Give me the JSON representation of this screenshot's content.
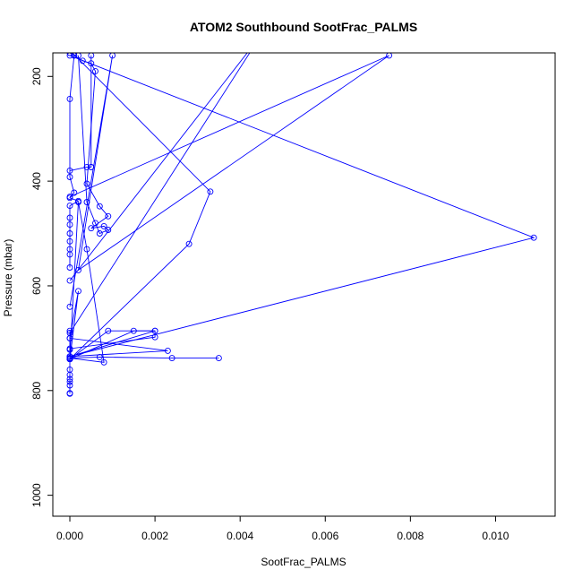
{
  "chart_data": {
    "type": "line",
    "title": "ATOM2 Southbound SootFrac_PALMS",
    "xlabel": "SootFrac_PALMS",
    "ylabel": "Pressure (mbar)",
    "xlim": [
      -0.0004,
      0.0114
    ],
    "ylim": [
      1040,
      155
    ],
    "y_reversed": true,
    "x_ticks": [
      "0.000",
      "0.002",
      "0.004",
      "0.006",
      "0.008",
      "0.010"
    ],
    "x_tick_values": [
      0.0,
      0.002,
      0.004,
      0.006,
      0.008,
      0.01
    ],
    "y_ticks": [
      "200",
      "400",
      "600",
      "800",
      "1000"
    ],
    "y_tick_values": [
      200,
      400,
      600,
      800,
      1000
    ],
    "series_color": "#0000ff",
    "series": [
      {
        "x": [
          0.0,
          0.0001,
          0.0,
          0.0,
          0.0001,
          0.0,
          0.0002,
          0.0,
          0.0,
          0.0,
          0.0,
          0.0,
          0.0,
          0.0,
          0.0
        ],
        "y": [
          155,
          160,
          243,
          392,
          422,
          432,
          438,
          447,
          470,
          483,
          500,
          515,
          530,
          540,
          565
        ]
      },
      {
        "x": [
          0.0001,
          0.0003,
          0.0005,
          0.0006,
          0.0004,
          0.0007,
          0.0009,
          0.0005,
          0.0008,
          0.0009,
          0.0007,
          0.0006,
          0.0004,
          0.0002
        ],
        "y": [
          160,
          170,
          175,
          190,
          405,
          448,
          467,
          490,
          486,
          493,
          500,
          480,
          440,
          160
        ]
      },
      {
        "x": [
          0.0005,
          0.0005,
          0.0005,
          0.0004,
          0.0
        ],
        "y": [
          160,
          373,
          373,
          373,
          380
        ]
      },
      {
        "x": [
          0.0,
          0.0033,
          0.0028,
          0.0,
          0.0015,
          0.002,
          0.002,
          0.0,
          0.0
        ],
        "y": [
          150,
          420,
          520,
          740,
          686,
          686,
          698,
          720,
          740
        ]
      },
      {
        "x": [
          0.0,
          0.0109,
          0.0,
          0.0023,
          0.0,
          0.0002,
          0.0
        ],
        "y": [
          160,
          508,
          735,
          724,
          700,
          610,
          740
        ]
      },
      {
        "x": [
          0.0,
          0.0075,
          0.0002,
          0.001,
          0.0
        ],
        "y": [
          430,
          160,
          570,
          160,
          640
        ]
      },
      {
        "x": [
          0.0,
          0.0045,
          0.0
        ],
        "y": [
          590,
          120,
          690
        ]
      },
      {
        "x": [
          0.0,
          0.0009,
          0.002,
          0.0
        ],
        "y": [
          740,
          686,
          686,
          735
        ]
      },
      {
        "x": [
          0.0,
          0.0007,
          0.0024,
          0.0035
        ],
        "y": [
          738,
          736,
          738,
          738
        ]
      },
      {
        "x": [
          0.0,
          0.0008,
          0.0004,
          0.0002,
          0.0
        ],
        "y": [
          738,
          746,
          530,
          440,
          738
        ]
      },
      {
        "x": [
          0.0,
          0.0,
          0.0,
          0.0,
          0.0,
          0.0,
          0.0,
          0.0,
          0.0,
          0.0,
          0.0,
          0.0
        ],
        "y": [
          686,
          700,
          722,
          735,
          740,
          760,
          770,
          778,
          783,
          790,
          805,
          806
        ]
      }
    ]
  }
}
